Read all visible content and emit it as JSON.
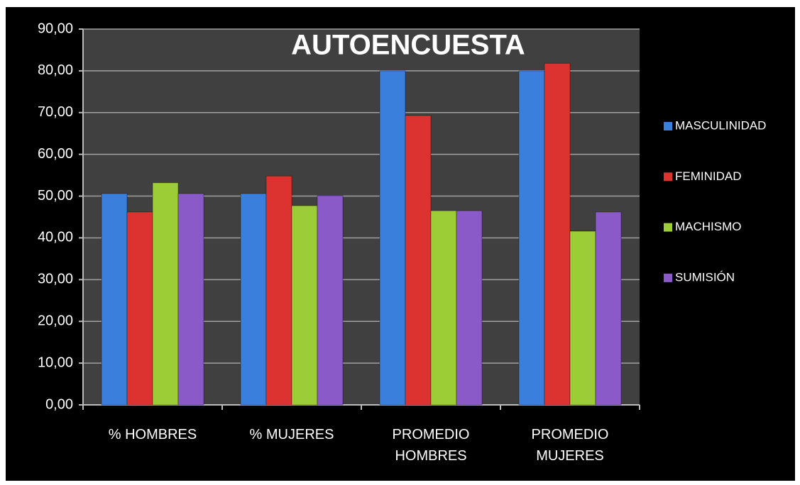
{
  "chart_data": {
    "type": "bar",
    "title": "AUTOENCUESTA",
    "categories": [
      "% HOMBRES",
      "%  MUJERES",
      "PROMEDIO HOMBRES",
      "PROMEDIO MUJERES"
    ],
    "series": [
      {
        "name": "MASCULINIDAD",
        "color": "#3b7fdc",
        "values": [
          50.6,
          50.6,
          80.0,
          80.0
        ]
      },
      {
        "name": "FEMINIDAD",
        "color": "#dd3330",
        "values": [
          46.2,
          54.8,
          69.3,
          81.8
        ]
      },
      {
        "name": "MACHISMO",
        "color": "#9ccc36",
        "values": [
          53.2,
          47.7,
          46.5,
          41.6
        ]
      },
      {
        "name": "SUMISIÓN",
        "color": "#8a5bc8",
        "values": [
          50.6,
          50.1,
          46.5,
          46.2
        ]
      }
    ],
    "ylim": [
      0,
      90
    ],
    "yticks": [
      {
        "value": 0,
        "label": "0,00"
      },
      {
        "value": 10,
        "label": "10,00"
      },
      {
        "value": 20,
        "label": "20,00"
      },
      {
        "value": 30,
        "label": "30,00"
      },
      {
        "value": 40,
        "label": "40,00"
      },
      {
        "value": 50,
        "label": "50,00"
      },
      {
        "value": 60,
        "label": "60,00"
      },
      {
        "value": 70,
        "label": "70,00"
      },
      {
        "value": 80,
        "label": "80,00"
      },
      {
        "value": 90,
        "label": "90,00"
      }
    ],
    "grid": true
  }
}
